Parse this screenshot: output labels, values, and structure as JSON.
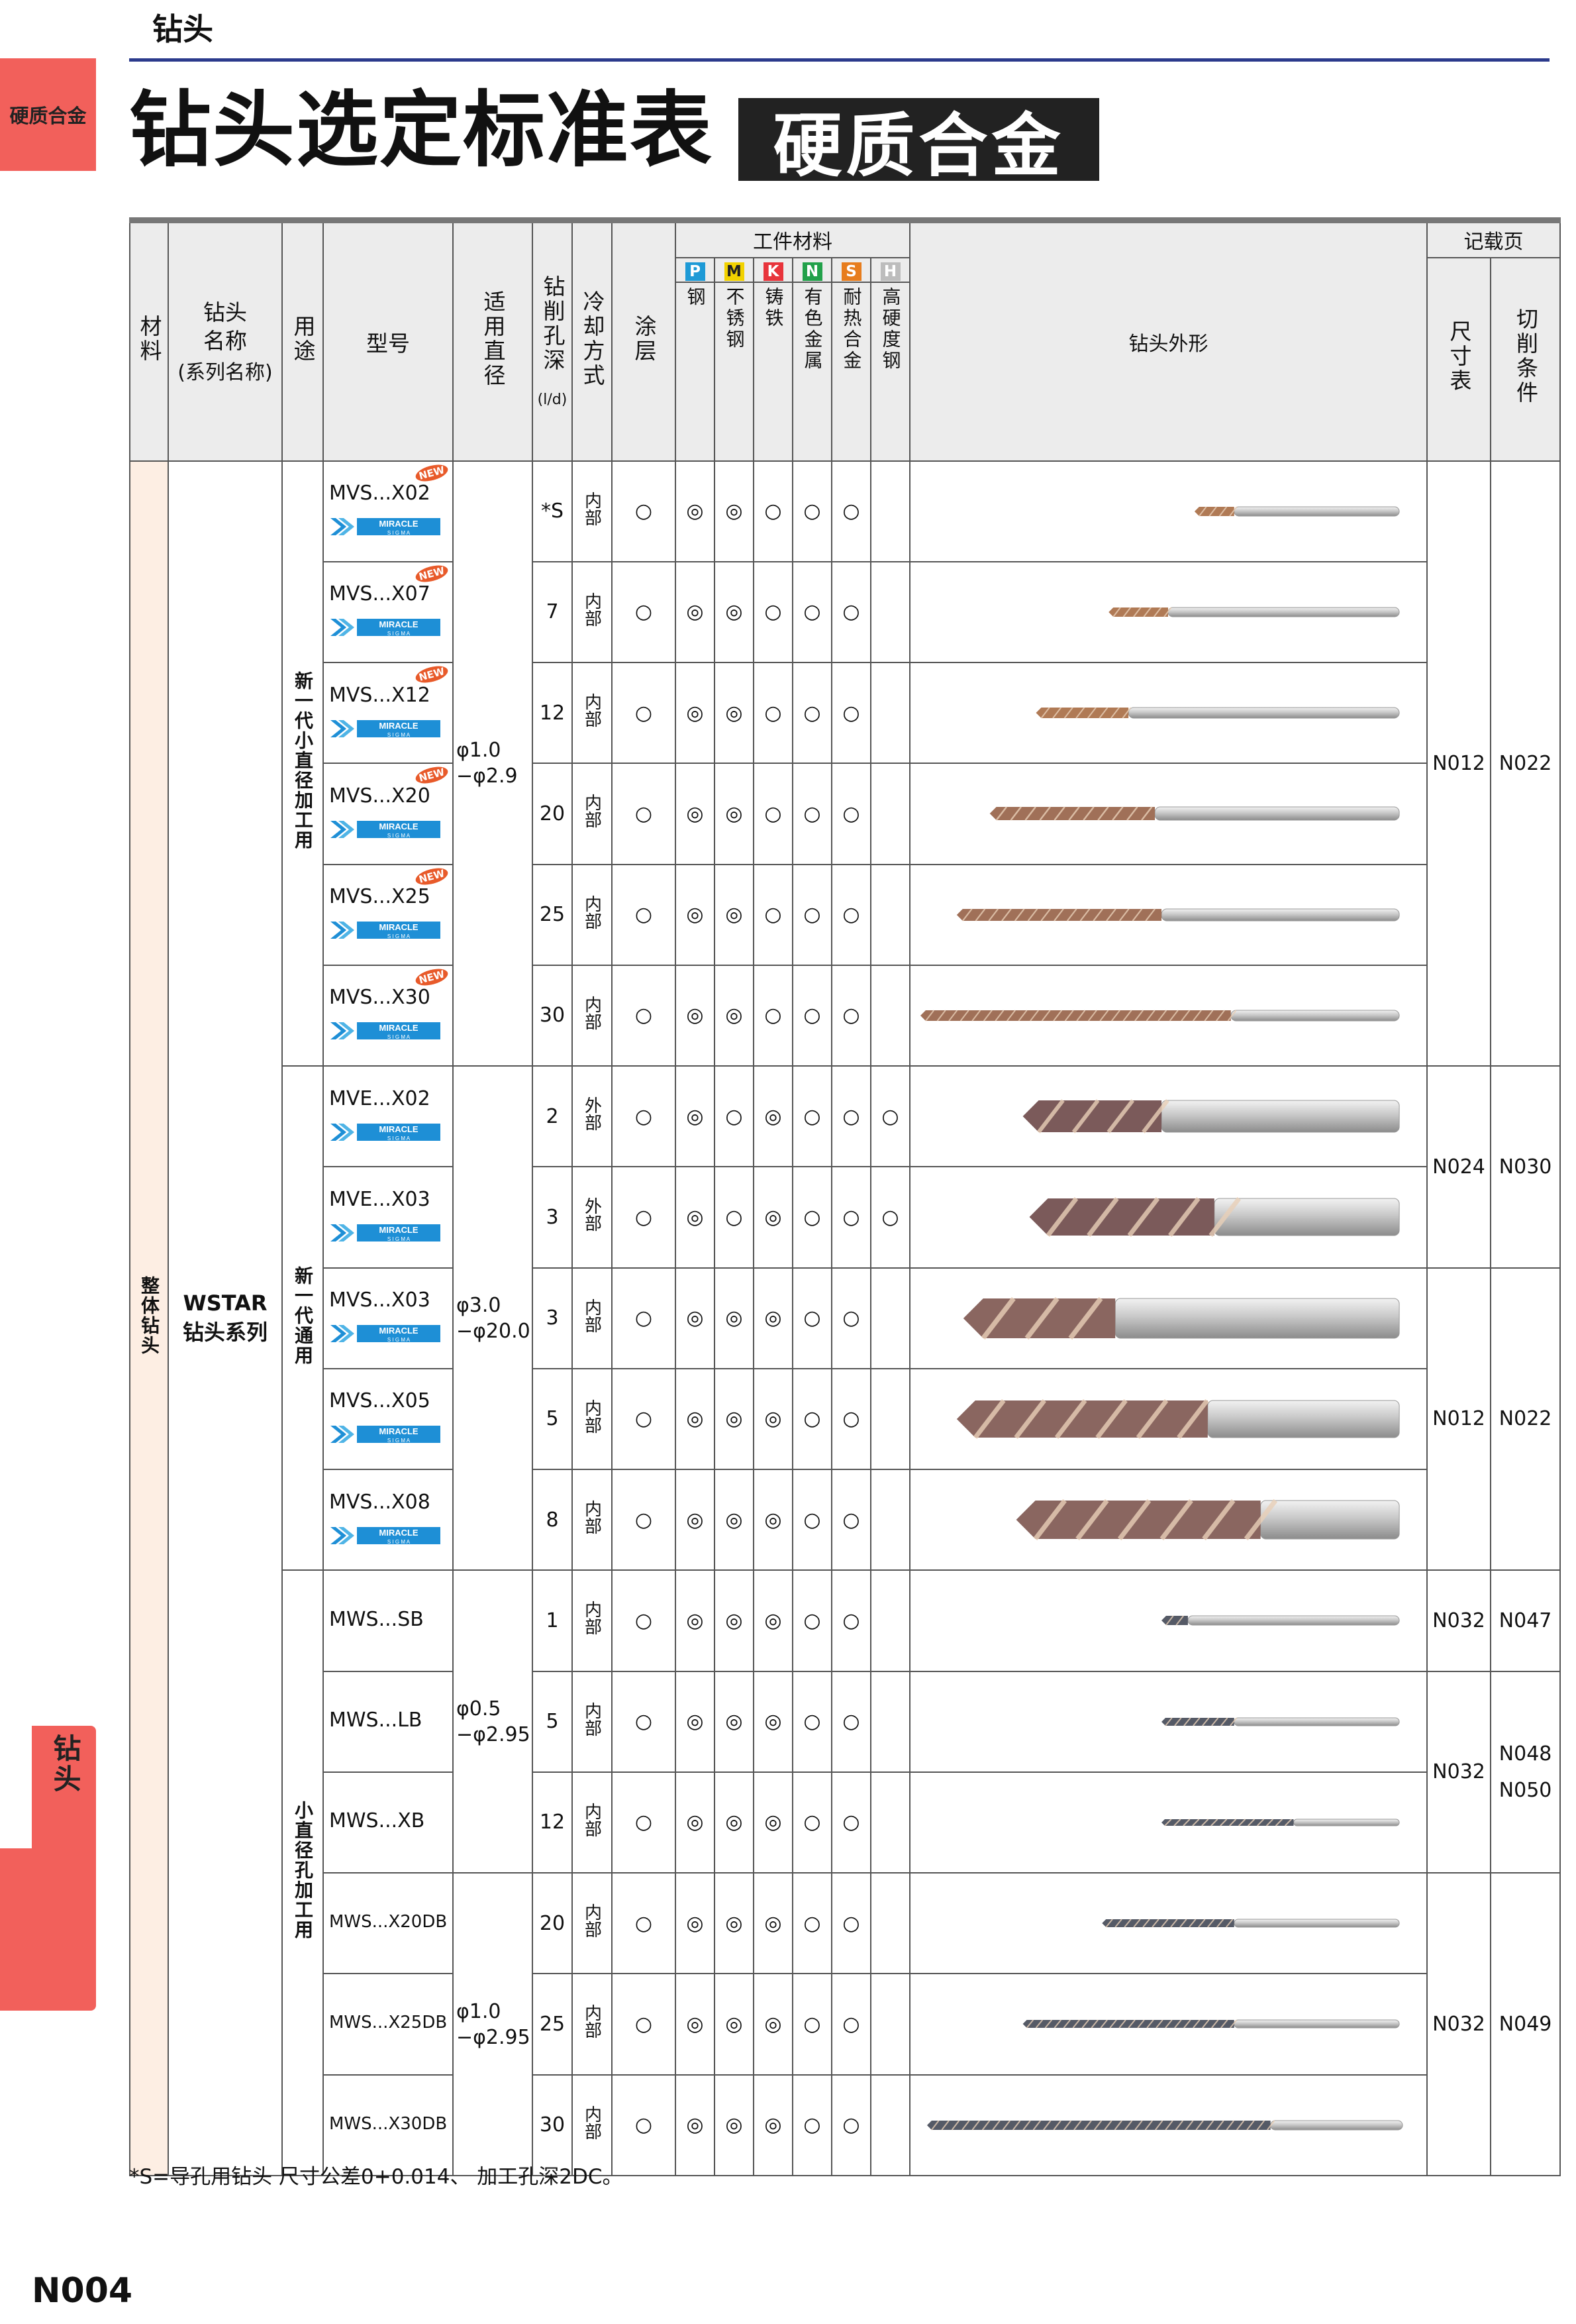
{
  "header": {
    "section": "钻头",
    "tab_top": "硬质合金",
    "tab_bottom": "钻头"
  },
  "title": {
    "main": "钻头选定标准表",
    "badge": "硬质合金"
  },
  "table": {
    "h_material": "材料",
    "h_name": "钻头名称",
    "h_series": "(系列名称)",
    "h_use": "用途",
    "h_model": "型号",
    "h_diameter": "适用直径",
    "h_depth": "钻削孔深",
    "h_depth_unit": "(l/d)",
    "h_cooling": "冷却方式",
    "h_coating": "涂层",
    "h_workpiece": "工件材料",
    "h_shape": "钻头外形",
    "h_ref": "记载页",
    "h_size": "尺寸表",
    "h_cond": "切削条件",
    "materials": [
      {
        "code": "P",
        "name": "钢",
        "color": "#1e9ad6"
      },
      {
        "code": "M",
        "name": "不锈钢",
        "color": "#f2d200"
      },
      {
        "code": "K",
        "name": "铸铁",
        "color": "#e8343b"
      },
      {
        "code": "N",
        "name": "有色金属",
        "color": "#22a14a"
      },
      {
        "code": "S",
        "name": "耐热合金",
        "color": "#e77d1e"
      },
      {
        "code": "H",
        "name": "高硬度钢",
        "color": "#bdbdbd"
      }
    ],
    "material_cell": "整体钻头",
    "name_cell": "WSTAR",
    "series_cell": "钻头系列",
    "groups": [
      {
        "use": "新一代小直径加工用",
        "diameter": "φ1.0 −φ2.9"
      },
      {
        "use": "新一代通用",
        "diameter": "φ3.0 −φ20.0"
      },
      {
        "use": "小直径孔加工用",
        "diameter_a": "φ0.5 −φ2.95",
        "diameter_b": "φ1.0 −φ2.95"
      }
    ],
    "logo_text": "MIRACLE",
    "logo_sub": "S I G M A",
    "new_badge": "NEW",
    "rows": [
      {
        "model": "MVS...X02",
        "depth": "*S",
        "cool": "内部",
        "coat": "○",
        "marks": [
          "◎",
          "◎",
          "○",
          "○",
          "○",
          ""
        ]
      },
      {
        "model": "MVS...X07",
        "depth": "7",
        "cool": "内部",
        "coat": "○",
        "marks": [
          "◎",
          "◎",
          "○",
          "○",
          "○",
          ""
        ]
      },
      {
        "model": "MVS...X12",
        "depth": "12",
        "cool": "内部",
        "coat": "○",
        "marks": [
          "◎",
          "◎",
          "○",
          "○",
          "○",
          ""
        ]
      },
      {
        "model": "MVS...X20",
        "depth": "20",
        "cool": "内部",
        "coat": "○",
        "marks": [
          "◎",
          "◎",
          "○",
          "○",
          "○",
          ""
        ]
      },
      {
        "model": "MVS...X25",
        "depth": "25",
        "cool": "内部",
        "coat": "○",
        "marks": [
          "◎",
          "◎",
          "○",
          "○",
          "○",
          ""
        ]
      },
      {
        "model": "MVS...X30",
        "depth": "30",
        "cool": "内部",
        "coat": "○",
        "marks": [
          "◎",
          "◎",
          "○",
          "○",
          "○",
          ""
        ]
      },
      {
        "model": "MVE...X02",
        "depth": "2",
        "cool": "外部",
        "coat": "○",
        "marks": [
          "◎",
          "○",
          "◎",
          "○",
          "○",
          "○"
        ]
      },
      {
        "model": "MVE...X03",
        "depth": "3",
        "cool": "外部",
        "coat": "○",
        "marks": [
          "◎",
          "○",
          "◎",
          "○",
          "○",
          "○"
        ]
      },
      {
        "model": "MVS...X03",
        "depth": "3",
        "cool": "内部",
        "coat": "○",
        "marks": [
          "◎",
          "◎",
          "◎",
          "○",
          "○",
          ""
        ]
      },
      {
        "model": "MVS...X05",
        "depth": "5",
        "cool": "内部",
        "coat": "○",
        "marks": [
          "◎",
          "◎",
          "◎",
          "○",
          "○",
          ""
        ]
      },
      {
        "model": "MVS...X08",
        "depth": "8",
        "cool": "内部",
        "coat": "○",
        "marks": [
          "◎",
          "◎",
          "◎",
          "○",
          "○",
          ""
        ]
      },
      {
        "model": "MWS...SB",
        "depth": "1",
        "cool": "内部",
        "coat": "○",
        "marks": [
          "◎",
          "◎",
          "◎",
          "○",
          "○",
          ""
        ]
      },
      {
        "model": "MWS...LB",
        "depth": "5",
        "cool": "内部",
        "coat": "○",
        "marks": [
          "◎",
          "◎",
          "◎",
          "○",
          "○",
          ""
        ]
      },
      {
        "model": "MWS...XB",
        "depth": "12",
        "cool": "内部",
        "coat": "○",
        "marks": [
          "◎",
          "◎",
          "◎",
          "○",
          "○",
          ""
        ]
      },
      {
        "model": "MWS...X20DB",
        "depth": "20",
        "cool": "内部",
        "coat": "○",
        "marks": [
          "◎",
          "◎",
          "◎",
          "○",
          "○",
          ""
        ]
      },
      {
        "model": "MWS...X25DB",
        "depth": "25",
        "cool": "内部",
        "coat": "○",
        "marks": [
          "◎",
          "◎",
          "◎",
          "○",
          "○",
          ""
        ]
      },
      {
        "model": "MWS...X30DB",
        "depth": "30",
        "cool": "内部",
        "coat": "○",
        "marks": [
          "◎",
          "◎",
          "◎",
          "○",
          "○",
          ""
        ]
      }
    ],
    "refs": [
      {
        "size": "N012",
        "cond": "N022"
      },
      {
        "size": "N024",
        "cond": "N030"
      },
      {
        "size": "N012",
        "cond": "N022"
      },
      {
        "size": "N032",
        "cond": "N047"
      },
      {
        "size": "N032",
        "cond": "N048",
        "cond2": "N050"
      },
      {
        "size": "N032",
        "cond": "N049"
      }
    ]
  },
  "footnote": "*S=导孔用钻头 尺寸公差0+0.014、 加工孔深2DC。",
  "page_number": "N004"
}
